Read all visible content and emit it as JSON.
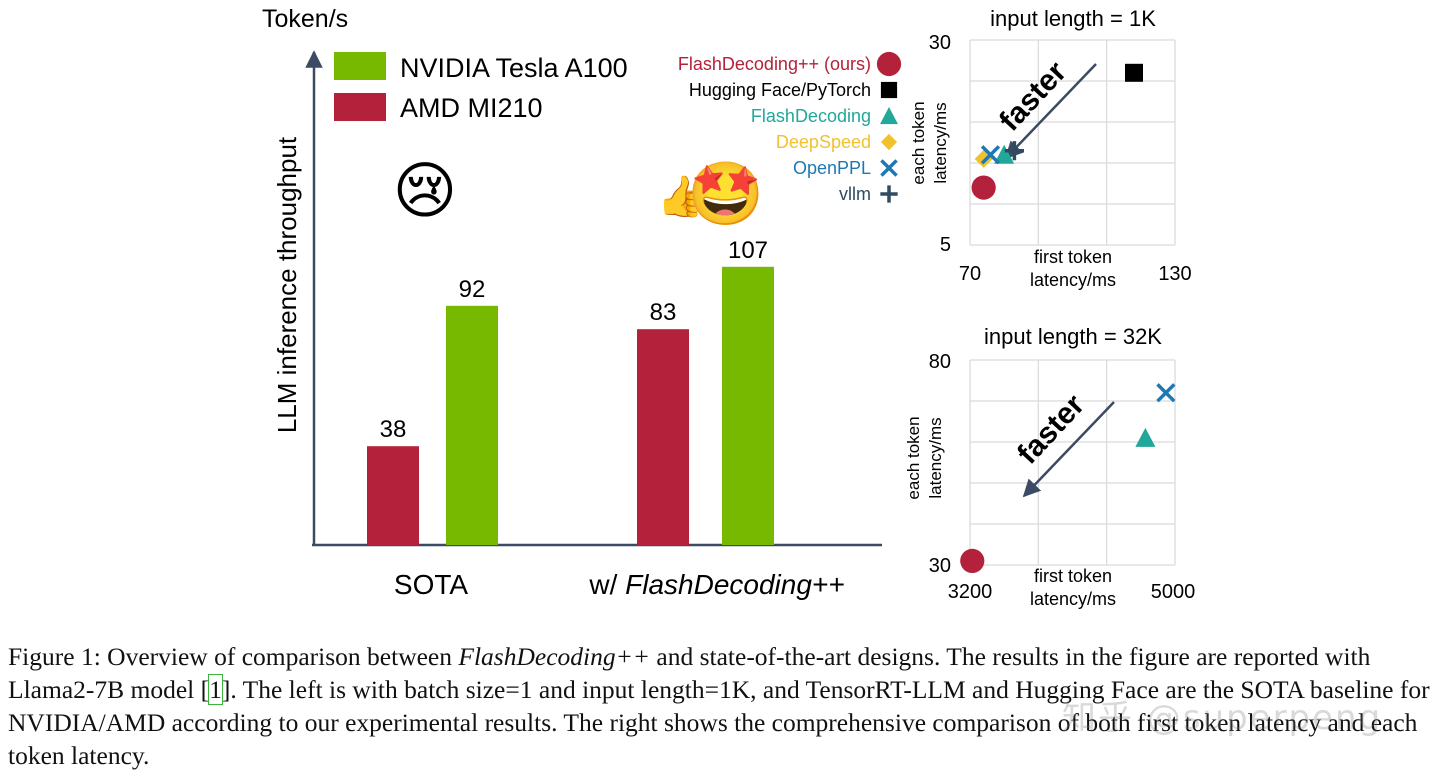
{
  "figure": {
    "emoji_sad": "😢",
    "emoji_happy": "🤩",
    "thumbs_up": "👍"
  },
  "chart_data": [
    {
      "type": "bar",
      "title": "",
      "ylabel": "LLM inference throughput",
      "yunit": "Token/s",
      "categories": [
        "SOTA",
        "w/ FlashDecoding++"
      ],
      "category_prefix": "w/ ",
      "category_italic": "FlashDecoding++",
      "ylim": [
        0,
        130
      ],
      "series": [
        {
          "name": "AMD MI210",
          "color": "#b3223a",
          "values": [
            38,
            83
          ]
        },
        {
          "name": "NVIDIA Tesla A100",
          "color": "#76b900",
          "values": [
            92,
            107
          ]
        }
      ],
      "legend": [
        {
          "name": "NVIDIA Tesla A100",
          "color": "#76b900"
        },
        {
          "name": "AMD MI210",
          "color": "#b3223a"
        }
      ]
    },
    {
      "type": "scatter",
      "title": "input length = 1K",
      "xlabel": [
        "first token",
        "latency/ms"
      ],
      "ylabel": [
        "each token",
        "latency/ms"
      ],
      "xlim": [
        70,
        130
      ],
      "ylim": [
        5,
        30
      ],
      "xticks": [
        "70",
        "130"
      ],
      "yticks": [
        "5",
        "30"
      ],
      "annotation": "faster",
      "points": [
        {
          "series": "FlashDecoding++ (ours)",
          "x": 74,
          "y": 12
        },
        {
          "series": "Hugging Face/PyTorch",
          "x": 118,
          "y": 26
        },
        {
          "series": "FlashDecoding",
          "x": 80,
          "y": 16
        },
        {
          "series": "DeepSpeed",
          "x": 74,
          "y": 15.5
        },
        {
          "series": "OpenPPL",
          "x": 76,
          "y": 16
        },
        {
          "series": "vllm",
          "x": 83,
          "y": 16.5
        }
      ]
    },
    {
      "type": "scatter",
      "title": "input length = 32K",
      "xlabel": [
        "first token",
        "latency/ms"
      ],
      "ylabel": [
        "each token",
        "latency/ms"
      ],
      "xlim": [
        3200,
        5000
      ],
      "ylim": [
        30,
        80
      ],
      "xticks": [
        "3200",
        "5000"
      ],
      "yticks": [
        "30",
        "80"
      ],
      "annotation": "faster",
      "points": [
        {
          "series": "FlashDecoding++ (ours)",
          "x": 3220,
          "y": 31
        },
        {
          "series": "FlashDecoding",
          "x": 4740,
          "y": 61
        },
        {
          "series": "OpenPPL",
          "x": 4920,
          "y": 72
        }
      ]
    }
  ],
  "marker_legend": [
    {
      "label": "FlashDecoding++ (ours)",
      "color": "#b3223a",
      "marker": "circle"
    },
    {
      "label": "Hugging Face/PyTorch",
      "color": "#000000",
      "marker": "square"
    },
    {
      "label": "FlashDecoding",
      "color": "#21a89a",
      "marker": "triangle"
    },
    {
      "label": "DeepSpeed",
      "color": "#f2c12e",
      "marker": "diamond"
    },
    {
      "label": "OpenPPL",
      "color": "#1e78b4",
      "marker": "x"
    },
    {
      "label": "vllm",
      "color": "#2f4b5f",
      "marker": "plus"
    }
  ],
  "caption": {
    "prefix": "Figure 1: Overview of comparison between ",
    "name": "FlashDecoding++",
    "mid1": " and state-of-the-art designs. The results in the figure are reported with Llama2-7B model [",
    "ref": "1",
    "mid2": "]. The left is with batch size=1 and input length=1K, and TensorRT-LLM and Hugging Face are the SOTA baseline for NVIDIA/AMD according to our experimental results. The right shows the comprehensive comparison of both first token latency and each token latency."
  },
  "watermark": "知乎 @superpeng"
}
